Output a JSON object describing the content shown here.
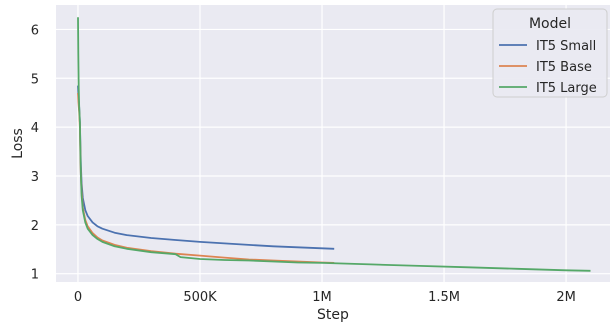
{
  "chart_data": {
    "type": "line",
    "xlabel": "Step",
    "ylabel": "Loss",
    "xlim": [
      -90000,
      2180000
    ],
    "ylim": [
      0.83,
      6.5
    ],
    "xticks": [
      0,
      500000,
      1000000,
      1500000,
      2000000
    ],
    "xtick_labels": [
      "0",
      "500K",
      "1M",
      "1.5M",
      "2M"
    ],
    "yticks": [
      1,
      2,
      3,
      4,
      5,
      6
    ],
    "ytick_labels": [
      "1",
      "2",
      "3",
      "4",
      "5",
      "6"
    ],
    "grid": true,
    "legend": {
      "title": "Model",
      "position": "top-right"
    },
    "series": [
      {
        "name": "IT5 Small",
        "color": "#4c72b0",
        "points": [
          [
            0,
            4.85
          ],
          [
            2000,
            4.6
          ],
          [
            5000,
            4.4
          ],
          [
            8000,
            4.1
          ],
          [
            10000,
            3.6
          ],
          [
            12000,
            3.2
          ],
          [
            15000,
            2.85
          ],
          [
            20000,
            2.55
          ],
          [
            30000,
            2.3
          ],
          [
            40000,
            2.18
          ],
          [
            60000,
            2.05
          ],
          [
            80000,
            1.97
          ],
          [
            100000,
            1.92
          ],
          [
            150000,
            1.84
          ],
          [
            200000,
            1.79
          ],
          [
            300000,
            1.73
          ],
          [
            400000,
            1.69
          ],
          [
            500000,
            1.65
          ],
          [
            600000,
            1.62
          ],
          [
            700000,
            1.59
          ],
          [
            800000,
            1.56
          ],
          [
            900000,
            1.54
          ],
          [
            1000000,
            1.52
          ],
          [
            1050000,
            1.51
          ]
        ]
      },
      {
        "name": "IT5 Base",
        "color": "#dd8452",
        "points": [
          [
            0,
            4.7
          ],
          [
            2000,
            4.5
          ],
          [
            5000,
            4.3
          ],
          [
            8000,
            4.0
          ],
          [
            10000,
            3.4
          ],
          [
            12000,
            3.0
          ],
          [
            15000,
            2.7
          ],
          [
            20000,
            2.35
          ],
          [
            30000,
            2.1
          ],
          [
            40000,
            1.97
          ],
          [
            60000,
            1.83
          ],
          [
            80000,
            1.74
          ],
          [
            100000,
            1.68
          ],
          [
            150000,
            1.59
          ],
          [
            200000,
            1.53
          ],
          [
            300000,
            1.46
          ],
          [
            400000,
            1.41
          ],
          [
            500000,
            1.37
          ],
          [
            600000,
            1.33
          ],
          [
            700000,
            1.29
          ],
          [
            800000,
            1.27
          ],
          [
            900000,
            1.25
          ],
          [
            1000000,
            1.23
          ],
          [
            1050000,
            1.22
          ]
        ]
      },
      {
        "name": "IT5 Large",
        "color": "#55a868",
        "points": [
          [
            0,
            6.25
          ],
          [
            1500,
            5.5
          ],
          [
            3000,
            4.8
          ],
          [
            5000,
            4.4
          ],
          [
            8000,
            4.1
          ],
          [
            10000,
            3.5
          ],
          [
            12000,
            3.0
          ],
          [
            15000,
            2.6
          ],
          [
            20000,
            2.3
          ],
          [
            30000,
            2.05
          ],
          [
            40000,
            1.92
          ],
          [
            60000,
            1.79
          ],
          [
            80000,
            1.71
          ],
          [
            100000,
            1.65
          ],
          [
            150000,
            1.56
          ],
          [
            200000,
            1.51
          ],
          [
            300000,
            1.44
          ],
          [
            400000,
            1.4
          ],
          [
            420000,
            1.34
          ],
          [
            500000,
            1.3
          ],
          [
            600000,
            1.28
          ],
          [
            700000,
            1.27
          ],
          [
            800000,
            1.25
          ],
          [
            900000,
            1.23
          ],
          [
            1000000,
            1.22
          ],
          [
            1200000,
            1.19
          ],
          [
            1400000,
            1.16
          ],
          [
            1600000,
            1.13
          ],
          [
            1800000,
            1.1
          ],
          [
            2000000,
            1.07
          ],
          [
            2100000,
            1.06
          ]
        ]
      }
    ]
  }
}
